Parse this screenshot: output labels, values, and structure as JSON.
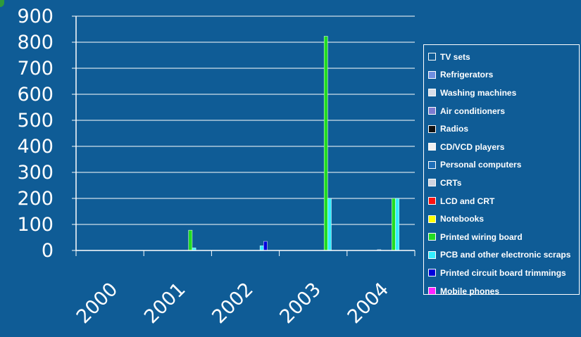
{
  "chart_data": {
    "type": "bar",
    "categories": [
      "2000",
      "2001",
      "2002",
      "2003",
      "2004"
    ],
    "ylim": [
      0,
      900
    ],
    "yticks": [
      0,
      100,
      200,
      300,
      400,
      500,
      600,
      700,
      800,
      900
    ],
    "grid": true,
    "legend_position": "right",
    "series": [
      {
        "name": "TV sets",
        "color": "#0f5c96",
        "values": [
          0,
          0,
          0,
          0,
          0
        ]
      },
      {
        "name": "Refrigerators",
        "color": "#6f8fe0",
        "values": [
          0,
          0,
          0,
          0,
          0
        ]
      },
      {
        "name": "Washing machines",
        "color": "#d8dde8",
        "values": [
          0,
          0,
          0,
          0,
          0
        ]
      },
      {
        "name": "Air conditioners",
        "color": "#7d7bd0",
        "values": [
          0,
          0,
          0,
          0,
          0
        ]
      },
      {
        "name": "Radios",
        "color": "#111111",
        "values": [
          0,
          0,
          0,
          0,
          0
        ]
      },
      {
        "name": "CD/VCD players",
        "color": "#f2f2f2",
        "values": [
          0,
          0,
          0,
          0,
          0
        ]
      },
      {
        "name": "Personal computers",
        "color": "#1f6fb8",
        "values": [
          0,
          0,
          0,
          0,
          3
        ]
      },
      {
        "name": "CRTs",
        "color": "#cfd3df",
        "values": [
          0,
          0,
          0,
          0,
          0
        ]
      },
      {
        "name": "LCD and CRT",
        "color": "#ff1111",
        "values": [
          0,
          0,
          0,
          0,
          0
        ]
      },
      {
        "name": "Notebooks",
        "color": "#ffff00",
        "values": [
          0,
          0,
          0,
          0,
          0
        ]
      },
      {
        "name": "Printed wiring board",
        "color": "#22dd22",
        "values": [
          0,
          78,
          0,
          823,
          200
        ]
      },
      {
        "name": "PCB and other electronic scraps",
        "color": "#33eeff",
        "values": [
          0,
          10,
          18,
          200,
          200
        ]
      },
      {
        "name": "Printed circuit board trimmings",
        "color": "#0000dd",
        "values": [
          0,
          0,
          35,
          0,
          0
        ]
      },
      {
        "name": "Mobile phones",
        "color": "#ff22ff",
        "values": [
          0,
          0,
          0,
          0,
          0
        ]
      }
    ]
  },
  "colors": {
    "background": "#0f5c96",
    "axis": "#ffffff",
    "text": "#ffffff"
  }
}
